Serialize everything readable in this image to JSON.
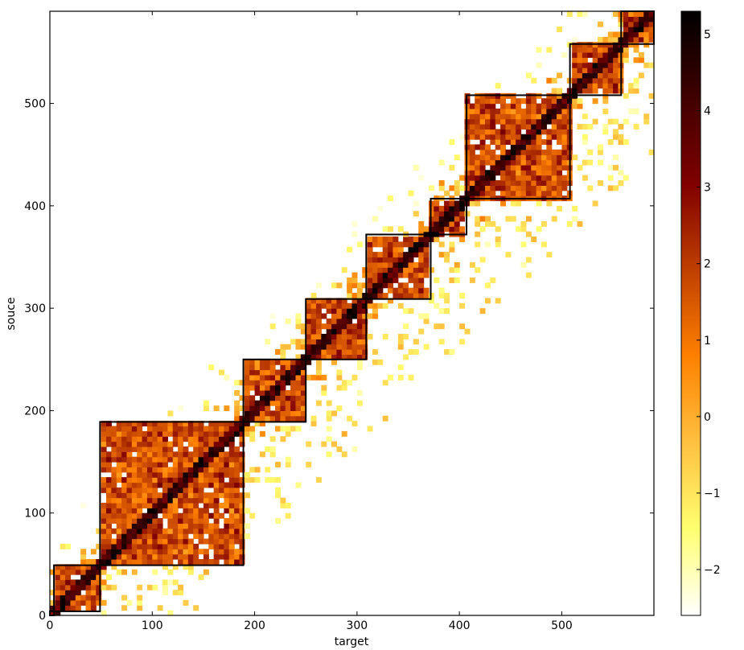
{
  "chart_data": {
    "type": "heatmap",
    "title": "",
    "xlabel": "target",
    "ylabel": "souce",
    "xlim": [
      0,
      590
    ],
    "ylim": [
      0,
      590
    ],
    "xticks": [
      0,
      100,
      200,
      300,
      400,
      500
    ],
    "yticks": [
      0,
      100,
      200,
      300,
      400,
      500
    ],
    "colorbar": {
      "min": -2.6,
      "max": 5.3,
      "ticks": [
        -2,
        -1,
        0,
        1,
        2,
        3,
        4,
        5
      ],
      "tick_labels": [
        "−2",
        "−1",
        "0",
        "1",
        "2",
        "3",
        "4",
        "5"
      ],
      "colormap": "afmhot_r",
      "color_stops": [
        "#ffffff",
        "#ffff70",
        "#ffc040",
        "#ff8000",
        "#c04000",
        "#800000",
        "#400000",
        "#000000"
      ]
    },
    "blocks": [
      {
        "x0": 0,
        "x1": 4,
        "y0": 0,
        "y1": 4
      },
      {
        "x0": 4,
        "x1": 49,
        "y0": 4,
        "y1": 49
      },
      {
        "x0": 49,
        "x1": 189,
        "y0": 49,
        "y1": 189
      },
      {
        "x0": 189,
        "x1": 250,
        "y0": 189,
        "y1": 250
      },
      {
        "x0": 250,
        "x1": 309,
        "y0": 250,
        "y1": 309
      },
      {
        "x0": 309,
        "x1": 372,
        "y0": 309,
        "y1": 372
      },
      {
        "x0": 372,
        "x1": 407,
        "y0": 372,
        "y1": 407
      },
      {
        "x0": 407,
        "x1": 508,
        "y0": 407,
        "y1": 508
      },
      {
        "x0": 508,
        "x1": 558,
        "y0": 508,
        "y1": 558
      },
      {
        "x0": 558,
        "x1": 590,
        "y0": 558,
        "y1": 590
      }
    ]
  }
}
